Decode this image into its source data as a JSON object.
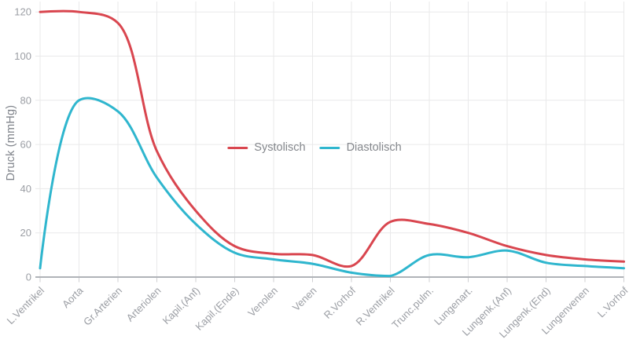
{
  "chart_data": {
    "type": "line",
    "title": "",
    "xlabel": "",
    "ylabel": "Druck (mmHg)",
    "ylim": [
      0,
      120
    ],
    "yticks": [
      0,
      20,
      40,
      60,
      80,
      100,
      120
    ],
    "grid": true,
    "curve": "smooth-spline",
    "legend_position": "inside-top-center",
    "categories": [
      "L.Ventrikel",
      "Aorta",
      "Gr.Arterien",
      "Arteriolen",
      "Kapil.(Anf)",
      "Kapil.(Ende)",
      "Venolen",
      "Venen",
      "R.Vorhof",
      "R.Ventrikel",
      "Trunc.pulm.",
      "Lungenart.",
      "Lungenk.(Anf)",
      "Lungenk.(End)",
      "Lungenvenen",
      "L.Vorhof"
    ],
    "series": [
      {
        "name": "Systolisch",
        "color": "#d9464f",
        "values": [
          120,
          120,
          115,
          57,
          30,
          14,
          10.5,
          10,
          5,
          25,
          24,
          20,
          14,
          10,
          8,
          7
        ]
      },
      {
        "name": "Diastolisch",
        "color": "#2fb6ce",
        "values": [
          4,
          80,
          75,
          45,
          24,
          11,
          8,
          6,
          2,
          0.5,
          10,
          9,
          12,
          6.5,
          5,
          4
        ]
      }
    ]
  },
  "colors": {
    "background": "#ffffff",
    "gridline": "#e9e9ea",
    "axis_line": "#b0b3b8",
    "tick_mark": "#cfcfd2",
    "tick_label": "#9b9ea4",
    "axis_title": "#7f838a",
    "legend_text": "#84878c"
  }
}
